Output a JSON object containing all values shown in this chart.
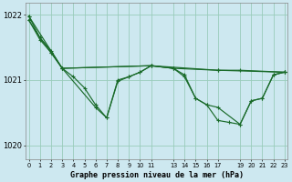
{
  "bg_color": "#cde8f0",
  "grid_color": "#99ccbb",
  "line_color": "#1a6b2a",
  "title": "Graphe pression niveau de la mer (hPa)",
  "ylim": [
    1019.78,
    1022.18
  ],
  "yticks": [
    1020,
    1021,
    1022
  ],
  "xlim": [
    -0.3,
    23.3
  ],
  "series1_x": [
    0,
    1,
    2,
    3,
    6,
    7,
    8,
    9,
    10,
    11,
    13,
    14,
    15,
    16,
    17,
    19,
    20,
    21,
    22,
    23
  ],
  "series1_y": [
    1021.92,
    1021.62,
    1021.42,
    1021.18,
    1020.58,
    1020.42,
    1020.98,
    1021.05,
    1021.12,
    1021.22,
    1021.18,
    1021.08,
    1020.72,
    1020.62,
    1020.58,
    1020.32,
    1020.68,
    1020.72,
    1021.08,
    1021.12
  ],
  "series2_x": [
    0,
    1,
    2,
    3,
    11,
    17,
    23
  ],
  "series2_y": [
    1021.92,
    1021.65,
    1021.42,
    1021.18,
    1021.22,
    1021.15,
    1021.12
  ],
  "series3_x": [
    0,
    3,
    11,
    13,
    17,
    19,
    23
  ],
  "series3_y": [
    1021.98,
    1021.18,
    1021.22,
    1021.18,
    1021.15,
    1021.15,
    1021.12
  ],
  "series4_x": [
    0,
    1,
    2,
    3,
    4,
    5,
    6,
    7,
    8,
    9,
    10,
    11,
    13,
    14,
    15,
    16,
    17,
    18,
    19,
    20,
    21,
    22,
    23
  ],
  "series4_y": [
    1021.98,
    1021.65,
    1021.45,
    1021.18,
    1021.05,
    1020.88,
    1020.62,
    1020.42,
    1021.0,
    1021.05,
    1021.12,
    1021.22,
    1021.18,
    1021.05,
    1020.72,
    1020.62,
    1020.38,
    1020.35,
    1020.32,
    1020.68,
    1020.72,
    1021.08,
    1021.12
  ],
  "xtick_positions": [
    0,
    1,
    2,
    3,
    4,
    5,
    6,
    7,
    8,
    9,
    10,
    11,
    13,
    14,
    15,
    16,
    17,
    19,
    20,
    21,
    22,
    23
  ],
  "xtick_labels": [
    "0",
    "1",
    "2",
    "3",
    "4",
    "5",
    "6",
    "7",
    "8",
    "9",
    "10",
    "11",
    "13",
    "14",
    "15",
    "16",
    "17",
    "19",
    "20",
    "21",
    "22",
    "23"
  ]
}
